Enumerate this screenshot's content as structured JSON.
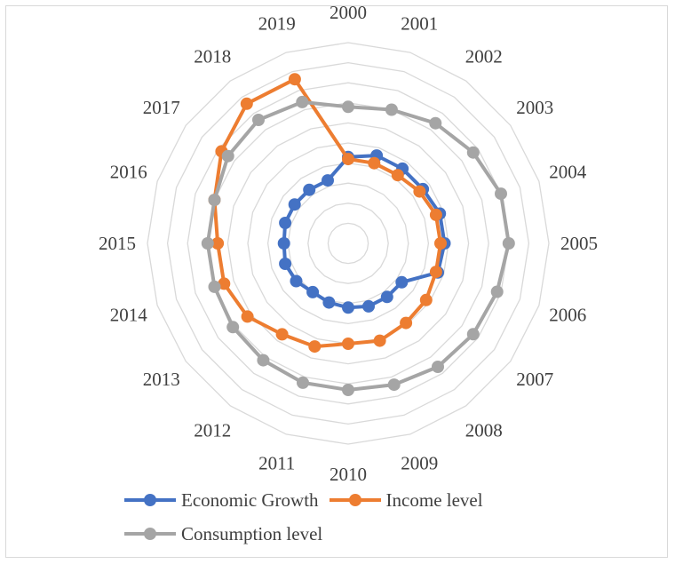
{
  "chart_data": {
    "type": "radar",
    "title": "",
    "categories": [
      "2000",
      "2001",
      "2002",
      "2003",
      "2004",
      "2005",
      "2006",
      "2007",
      "2008",
      "2009",
      "2010",
      "2011",
      "2012",
      "2013",
      "2014",
      "2015",
      "2016",
      "2017",
      "2018",
      "2019"
    ],
    "rmax": 10,
    "grid_levels": 10,
    "grid": true,
    "legend_position": "bottom",
    "series": [
      {
        "name": "Economic Growth",
        "color": "#4472c4",
        "values": [
          4.3,
          4.6,
          4.6,
          4.6,
          4.8,
          4.8,
          4.7,
          3.3,
          3.3,
          3.3,
          3.2,
          3.1,
          3.0,
          3.2,
          3.3,
          3.2,
          3.3,
          3.3,
          3.3,
          3.3
        ]
      },
      {
        "name": "Income level",
        "color": "#ed7d31",
        "values": [
          4.2,
          4.2,
          4.2,
          4.4,
          4.6,
          4.6,
          4.6,
          4.8,
          4.9,
          5.1,
          5.0,
          5.4,
          5.6,
          6.2,
          6.5,
          6.5,
          7.0,
          7.8,
          8.6,
          8.6
        ]
      },
      {
        "name": "Consumption level",
        "color": "#a5a5a5",
        "values": [
          6.8,
          7.0,
          7.4,
          7.7,
          8.0,
          8.0,
          7.8,
          7.7,
          7.6,
          7.4,
          7.3,
          7.3,
          7.2,
          7.1,
          7.0,
          7.0,
          7.0,
          7.4,
          7.6,
          7.4
        ]
      }
    ]
  }
}
